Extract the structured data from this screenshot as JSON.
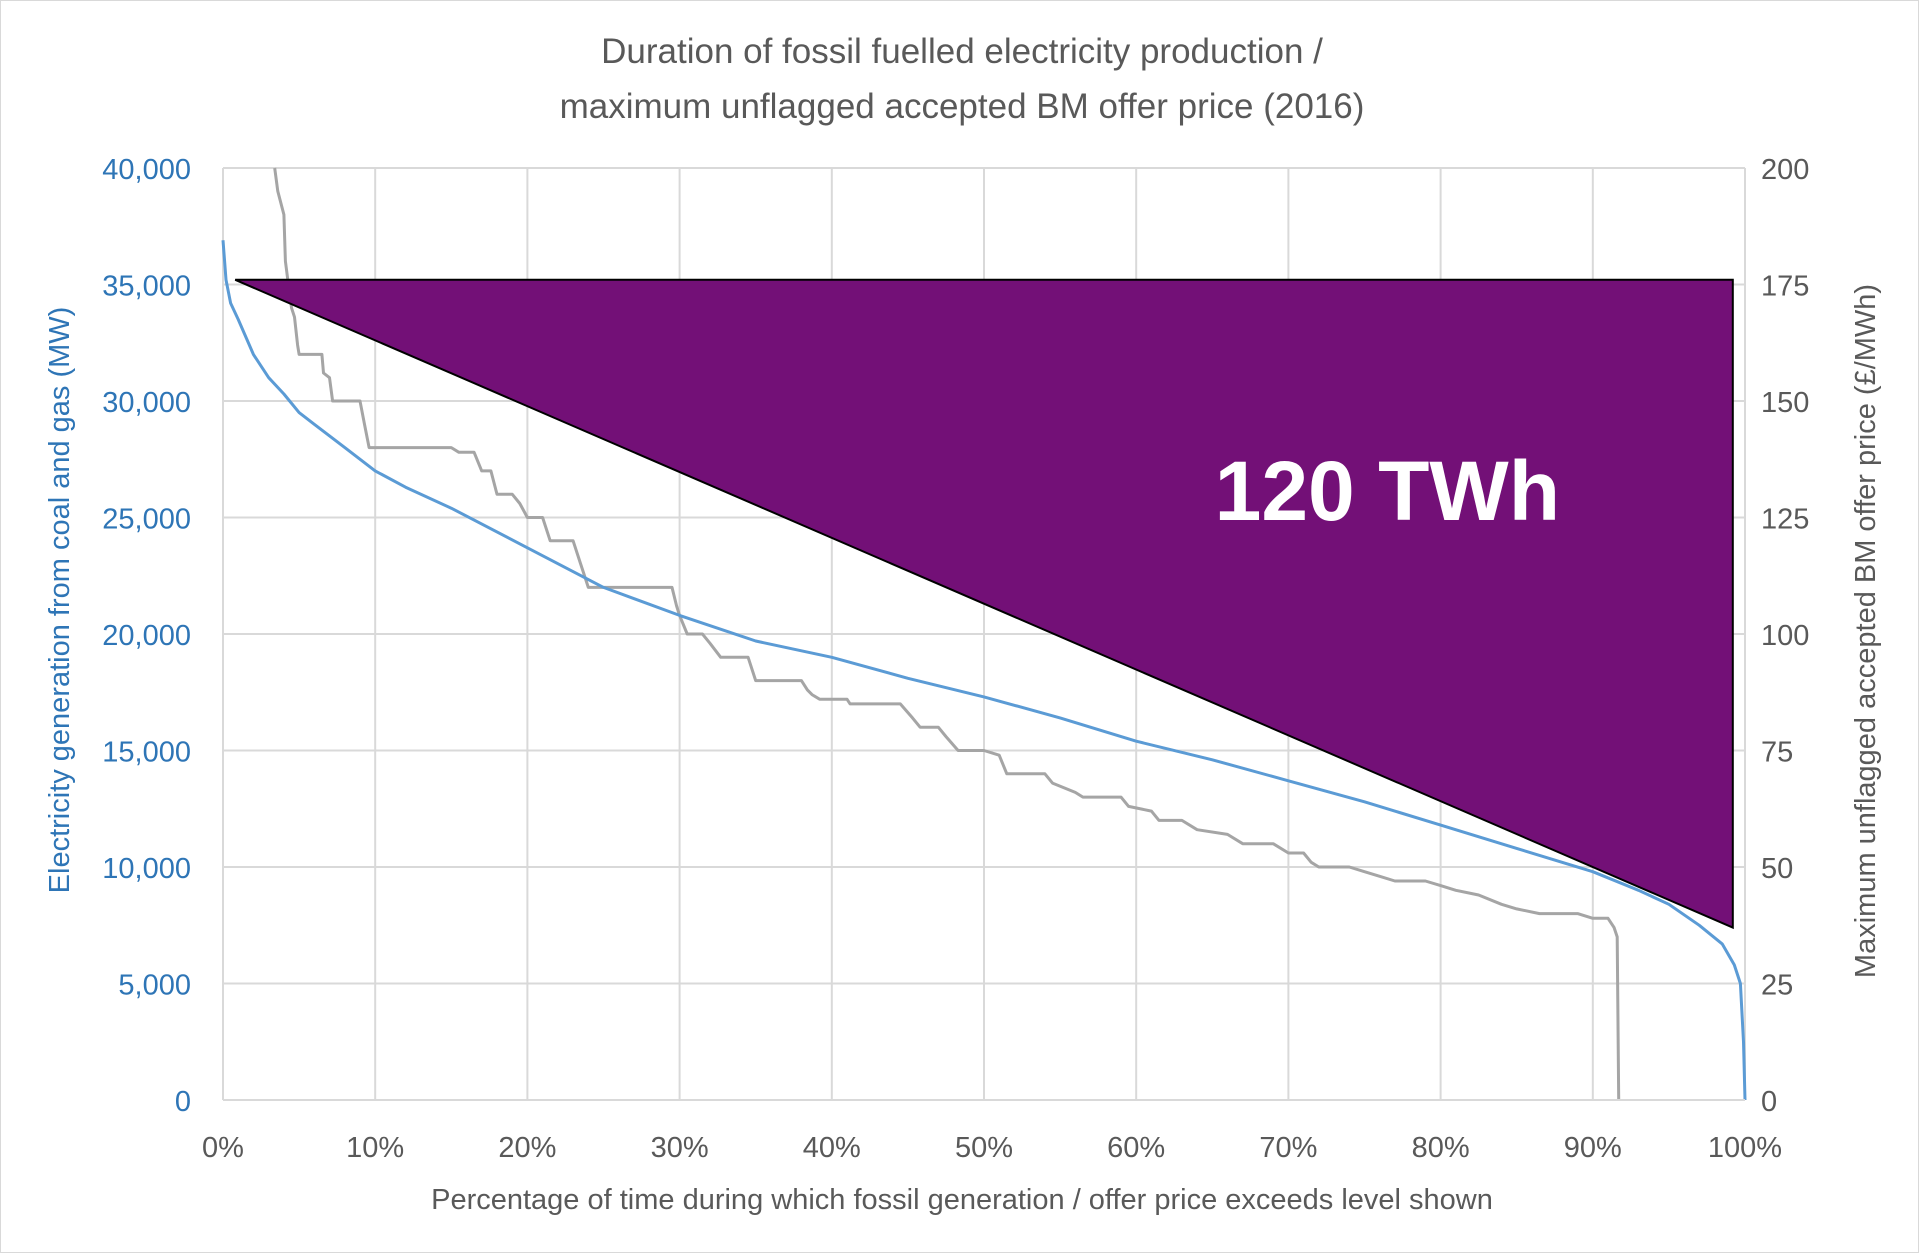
{
  "chart_data": {
    "type": "line",
    "title": "Duration of fossil fuelled electricity production /",
    "subtitle": "maximum unflagged accepted BM offer price (2016)",
    "xlabel": "Percentage of time during which fossil generation / offer price exceeds level shown",
    "ylabel_left": "Electricity generation from coal and gas (MW)",
    "ylabel_right": "Maximum unflagged accepted BM offer price (£/MWh)",
    "xlim": [
      0,
      100
    ],
    "ylim_left": [
      0,
      40000
    ],
    "ylim_right": [
      0,
      200
    ],
    "x_ticks": [
      "0%",
      "10%",
      "20%",
      "30%",
      "40%",
      "50%",
      "60%",
      "70%",
      "80%",
      "90%",
      "100%"
    ],
    "y_ticks_left": [
      "0",
      "5,000",
      "10,000",
      "15,000",
      "20,000",
      "25,000",
      "30,000",
      "35,000",
      "40,000"
    ],
    "y_ticks_right": [
      "0",
      "25",
      "50",
      "75",
      "100",
      "125",
      "150",
      "175",
      "200"
    ],
    "grid": true,
    "colors": {
      "generation": "#5b9bd5",
      "price": "#a5a5a5",
      "triangle": "#731077",
      "triangle_edge": "#000000",
      "left_axis_text": "#2e75b6",
      "right_axis_text": "#595959",
      "title_text": "#595959",
      "grid": "#d9d9d9"
    },
    "series": [
      {
        "axis": "left",
        "points": [
          [
            0,
            36900
          ],
          [
            0.2,
            35200
          ],
          [
            0.5,
            34200
          ],
          [
            1,
            33500
          ],
          [
            2,
            32000
          ],
          [
            3,
            31000
          ],
          [
            4,
            30300
          ],
          [
            5,
            29500
          ],
          [
            6,
            29000
          ],
          [
            8,
            28000
          ],
          [
            10,
            27000
          ],
          [
            12,
            26300
          ],
          [
            15,
            25400
          ],
          [
            20,
            23700
          ],
          [
            25,
            22000
          ],
          [
            30,
            20800
          ],
          [
            35,
            19700
          ],
          [
            40,
            19000
          ],
          [
            45,
            18100
          ],
          [
            50,
            17300
          ],
          [
            55,
            16400
          ],
          [
            60,
            15400
          ],
          [
            65,
            14600
          ],
          [
            70,
            13700
          ],
          [
            75,
            12800
          ],
          [
            80,
            11800
          ],
          [
            85,
            10800
          ],
          [
            90,
            9800
          ],
          [
            93,
            9000
          ],
          [
            95,
            8400
          ],
          [
            97,
            7500
          ],
          [
            98.5,
            6700
          ],
          [
            99.3,
            5800
          ],
          [
            99.7,
            5000
          ],
          [
            99.9,
            2500
          ],
          [
            100,
            0
          ]
        ]
      },
      {
        "axis": "right",
        "points": [
          [
            3.4,
            200
          ],
          [
            3.6,
            195
          ],
          [
            4,
            190
          ],
          [
            4.1,
            180
          ],
          [
            4.3,
            175
          ],
          [
            4.5,
            170
          ],
          [
            4.7,
            168
          ],
          [
            4.9,
            162
          ],
          [
            5,
            160
          ],
          [
            6.5,
            160
          ],
          [
            6.6,
            156
          ],
          [
            7,
            155
          ],
          [
            7.2,
            150
          ],
          [
            9,
            150
          ],
          [
            9.3,
            145
          ],
          [
            9.6,
            140
          ],
          [
            10,
            140
          ],
          [
            15,
            140
          ],
          [
            15.5,
            139
          ],
          [
            16.5,
            139
          ],
          [
            17,
            135
          ],
          [
            17.6,
            135
          ],
          [
            18,
            130
          ],
          [
            19,
            130
          ],
          [
            19.5,
            128
          ],
          [
            20,
            125
          ],
          [
            21,
            125
          ],
          [
            21.5,
            120
          ],
          [
            23,
            120
          ],
          [
            23.5,
            115
          ],
          [
            24,
            110
          ],
          [
            29.5,
            110
          ],
          [
            29.8,
            106
          ],
          [
            30,
            104
          ],
          [
            30.5,
            100
          ],
          [
            31.5,
            100
          ],
          [
            32,
            98
          ],
          [
            32.7,
            95
          ],
          [
            34.5,
            95
          ],
          [
            35,
            90
          ],
          [
            38,
            90
          ],
          [
            38.4,
            88
          ],
          [
            38.7,
            87
          ],
          [
            39.2,
            86
          ],
          [
            41,
            86
          ],
          [
            41.2,
            85
          ],
          [
            43,
            85
          ],
          [
            44.5,
            85
          ],
          [
            45.3,
            82
          ],
          [
            45.8,
            80
          ],
          [
            47,
            80
          ],
          [
            47.5,
            78
          ],
          [
            48.3,
            75
          ],
          [
            50,
            75
          ],
          [
            51,
            74
          ],
          [
            51.5,
            70
          ],
          [
            54,
            70
          ],
          [
            54.5,
            68
          ],
          [
            56,
            66
          ],
          [
            56.5,
            65
          ],
          [
            59,
            65
          ],
          [
            59.5,
            63
          ],
          [
            61,
            62
          ],
          [
            61.5,
            60
          ],
          [
            63,
            60
          ],
          [
            64,
            58
          ],
          [
            66,
            57
          ],
          [
            67,
            55
          ],
          [
            69,
            55
          ],
          [
            70,
            53
          ],
          [
            71,
            53
          ],
          [
            71.5,
            51
          ],
          [
            72,
            50
          ],
          [
            74,
            50
          ],
          [
            75,
            49
          ],
          [
            76,
            48
          ],
          [
            77,
            47
          ],
          [
            79,
            47
          ],
          [
            80,
            46
          ],
          [
            81,
            45
          ],
          [
            82.5,
            44
          ],
          [
            84,
            42
          ],
          [
            85,
            41
          ],
          [
            86.5,
            40
          ],
          [
            89,
            40
          ],
          [
            90,
            39
          ],
          [
            91,
            39
          ],
          [
            91.4,
            37
          ],
          [
            91.6,
            35
          ],
          [
            91.7,
            0
          ]
        ]
      }
    ],
    "annotation": {
      "label": "120 TWh",
      "triangle": [
        [
          0.8,
          35200
        ],
        [
          99.2,
          35200
        ],
        [
          99.2,
          7400
        ]
      ]
    }
  }
}
